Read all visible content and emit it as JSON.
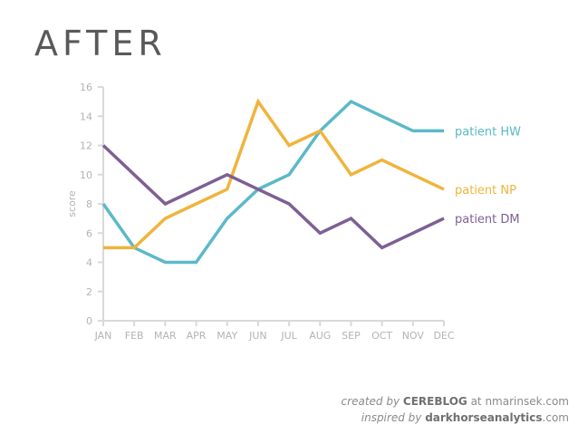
{
  "title": "AFTER",
  "chart_data": {
    "type": "line",
    "title": "AFTER",
    "ylabel": "score",
    "xlabel": "",
    "categories": [
      "JAN",
      "FEB",
      "MAR",
      "APR",
      "MAY",
      "JUN",
      "JUL",
      "AUG",
      "SEP",
      "OCT",
      "NOV",
      "DEC"
    ],
    "ylim": [
      0,
      16
    ],
    "yticks": [
      0,
      2,
      4,
      6,
      8,
      10,
      12,
      14,
      16
    ],
    "grid": false,
    "legend": "direct labels at right end of lines",
    "series": [
      {
        "name": "patient HW",
        "color": "#5bb9c8",
        "values": [
          8,
          5,
          4,
          4,
          7,
          9,
          10,
          13,
          15,
          14,
          13,
          13
        ]
      },
      {
        "name": "patient NP",
        "color": "#f0b43c",
        "values": [
          5,
          5,
          7,
          8,
          9,
          15,
          12,
          13,
          10,
          11,
          10,
          9
        ]
      },
      {
        "name": "patient DM",
        "color": "#7e5f95",
        "values": [
          12,
          10,
          8,
          9,
          10,
          9,
          8,
          6,
          7,
          5,
          6,
          7
        ]
      }
    ]
  },
  "credits": {
    "line1_prefix": "created by",
    "line1_brand": "CEREBLOG",
    "line1_suffix": "at nmarinsek.com",
    "line2_prefix": "inspired by",
    "line2_brand": "darkhorseanalytics",
    "line2_suffix": ".com"
  }
}
